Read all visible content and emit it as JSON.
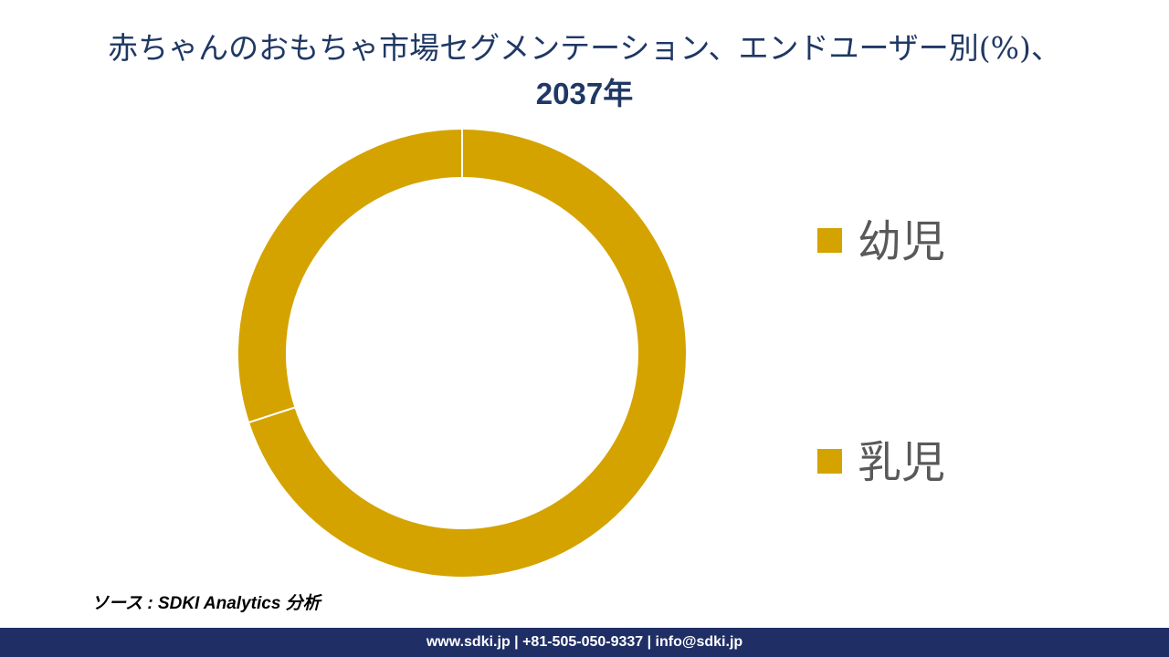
{
  "title": {
    "line1": "赤ちゃんのおもちゃ市場セグメンテーション、エンドユーザー別(%)、",
    "line2": "2037年"
  },
  "chart_data": {
    "type": "pie",
    "subtype": "donut",
    "title": "赤ちゃんのおもちゃ市場セグメンテーション、エンドユーザー別(%)、2037年",
    "categories": [
      "幼児",
      "乳児"
    ],
    "values": [
      70,
      30
    ],
    "colors": [
      "#d4a300",
      "#d4a300"
    ],
    "legend_position": "right",
    "start_angle": "top",
    "direction": "clockwise"
  },
  "source": "ソース : SDKI Analytics 分析",
  "footer": "www.sdki.jp | +81-505-050-9337 | info@sdki.jp"
}
